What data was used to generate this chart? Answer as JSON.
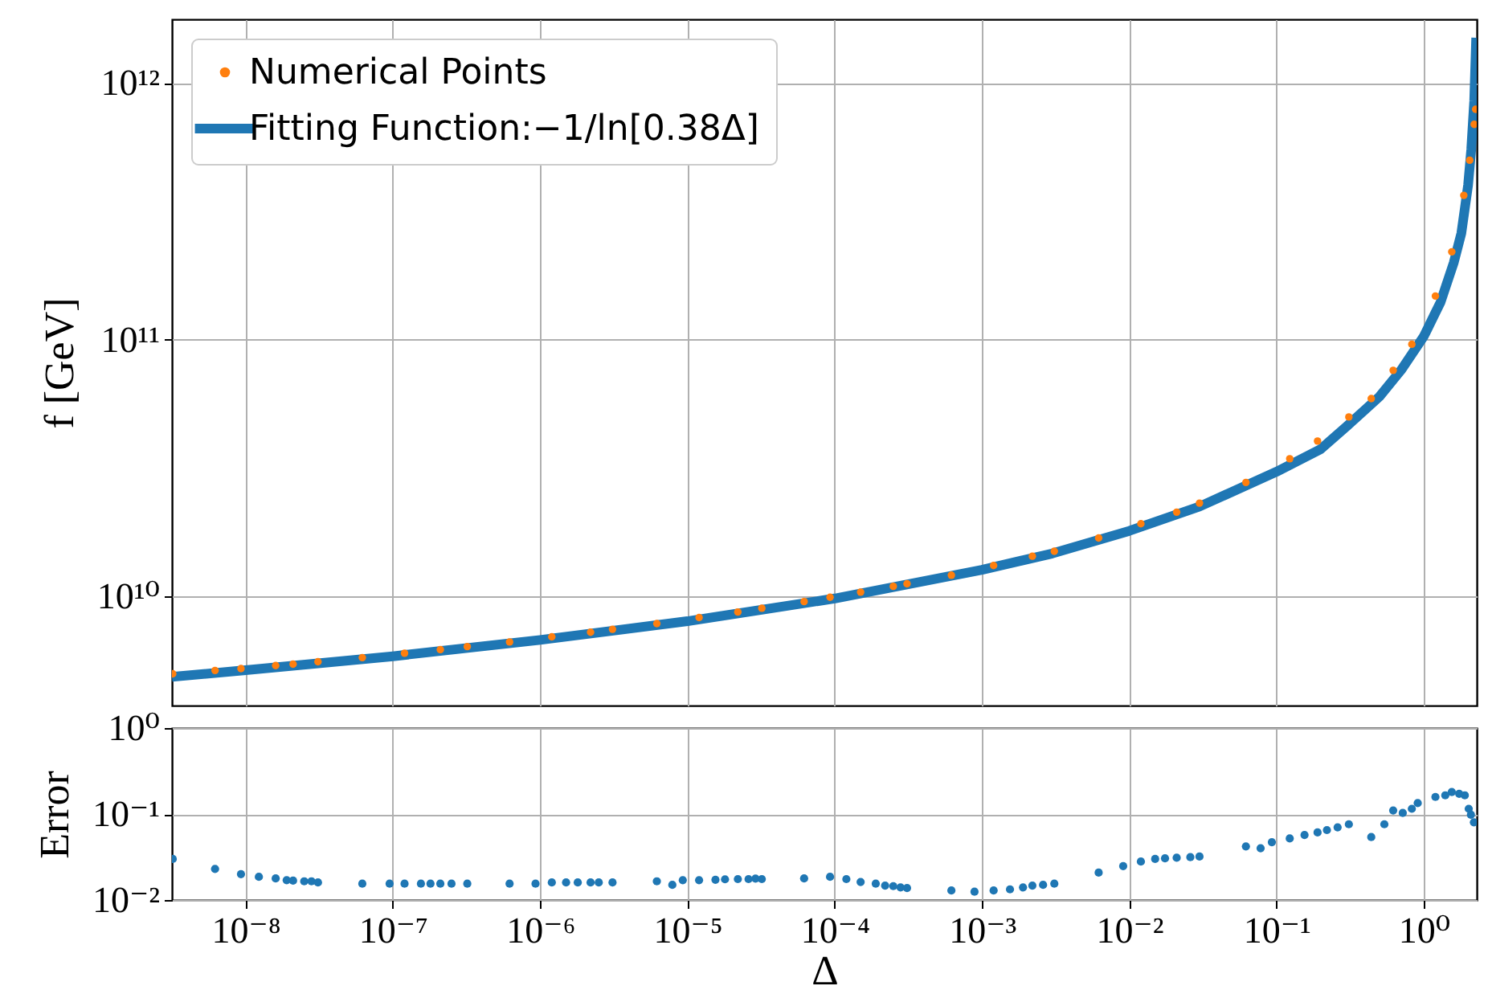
{
  "chart_data": [
    {
      "type": "scatter",
      "ylabel": "f [GeV]",
      "log": "xy",
      "grid": true,
      "legend": "top left",
      "tick_labels": "y",
      "xlim": [
        3.16e-09,
        2.29
      ],
      "ylim": [
        3760000000.0,
        1770000000000.0
      ],
      "xticks": [
        {
          "value": 1e-08,
          "label": null
        },
        {
          "value": 1e-07,
          "label": null
        },
        {
          "value": 1e-06,
          "label": null
        },
        {
          "value": 1e-05,
          "label": null
        },
        {
          "value": 0.0001,
          "label": null
        },
        {
          "value": 0.001,
          "label": null
        },
        {
          "value": 0.01,
          "label": null
        },
        {
          "value": 0.1,
          "label": null
        },
        {
          "value": 1,
          "label": null
        }
      ],
      "yticks": [
        {
          "value": 10000000000.0,
          "label": "10¹⁰"
        },
        {
          "value": 100000000000.0,
          "label": "10¹¹"
        },
        {
          "value": 1000000000000.0,
          "label": "10¹²"
        }
      ],
      "series": [
        {
          "name": "Numerical Points",
          "marker": "circle",
          "color": "#ff7f0e",
          "x": [
            3.2e-09,
            6.2e-09,
            9.3e-09,
            1.6e-08,
            2.1e-08,
            3.1e-08,
            6.2e-08,
            1.2e-07,
            2.1e-07,
            3.2e-07,
            6.2e-07,
            1.2e-06,
            2.2e-06,
            3.1e-06,
            6.2e-06,
            1.2e-05,
            2.2e-05,
            3.2e-05,
            6.2e-05,
            9.3e-05,
            0.00015,
            0.00025,
            0.00031,
            0.00062,
            0.0012,
            0.0022,
            0.0031,
            0.0062,
            0.012,
            0.021,
            0.03,
            0.062,
            0.123,
            0.19,
            0.31,
            0.44,
            0.62,
            0.83,
            1.2,
            1.55,
            1.87,
            2.05,
            2.2,
            2.25
          ],
          "values": [
            5000000000.0,
            5150000000.0,
            5240000000.0,
            5380000000.0,
            5450000000.0,
            5570000000.0,
            5780000000.0,
            6010000000.0,
            6210000000.0,
            6380000000.0,
            6650000000.0,
            6960000000.0,
            7260000000.0,
            7450000000.0,
            7840000000.0,
            8280000000.0,
            8700000000.0,
            9000000000.0,
            9550000000.0,
            9930000000.0,
            10400000000.0,
            10950000000.0,
            11200000000.0,
            12100000000.0,
            13200000000.0,
            14350000000.0,
            15000000000.0,
            16900000000.0,
            19200000000.0,
            21300000000.0,
            23100000000.0,
            27800000000.0,
            34400000000.0,
            40300000000.0,
            50000000000.0,
            59000000000.0,
            76000000000.0,
            96000000000.0,
            148000000000.0,
            220000000000.0,
            365000000000.0,
            500000000000.0,
            690000000000.0,
            790000000000.0
          ]
        },
        {
          "name": "Fitting Function:−1/ln[0.38Δ]",
          "type": "line",
          "color": "#1f77b4",
          "x": [
            3.16e-09,
            1e-08,
            1e-07,
            1e-06,
            1e-05,
            0.0001,
            0.001,
            0.003,
            0.01,
            0.03,
            0.1,
            0.2,
            0.3,
            0.5,
            0.7,
            1,
            1.3,
            1.6,
            1.8,
            2.0,
            2.1,
            2.2,
            2.27
          ],
          "values": [
            4860000000.0,
            5160000000.0,
            5850000000.0,
            6770000000.0,
            8010000000.0,
            9820000000.0,
            12700000000.0,
            14700000000.0,
            18000000000.0,
            22400000000.0,
            30600000000.0,
            37500000000.0,
            46000000000.0,
            60000000000.0,
            76000000000.0,
            103000000000.0,
            140000000000.0,
            200000000000.0,
            260000000000.0,
            400000000000.0,
            550000000000.0,
            850000000000.0,
            1500000000000.0
          ]
        }
      ]
    },
    {
      "type": "scatter",
      "xlabel": "Δ",
      "ylabel": "Error",
      "log": "xy",
      "grid": true,
      "marker": "circle",
      "xlim": [
        3.16e-09,
        2.29
      ],
      "ylim": [
        0.01,
        1
      ],
      "xticks": [
        {
          "value": 1e-08,
          "label": "10⁻⁸"
        },
        {
          "value": 1e-07,
          "label": "10⁻⁷"
        },
        {
          "value": 1e-06,
          "label": "10⁻⁶"
        },
        {
          "value": 1e-05,
          "label": "10⁻⁵"
        },
        {
          "value": 0.0001,
          "label": "10⁻⁴"
        },
        {
          "value": 0.001,
          "label": "10⁻³"
        },
        {
          "value": 0.01,
          "label": "10⁻²"
        },
        {
          "value": 0.1,
          "label": "10⁻¹"
        },
        {
          "value": 1,
          "label": "10⁰"
        }
      ],
      "yticks": [
        {
          "value": 0.01,
          "label": "10⁻²"
        },
        {
          "value": 0.1,
          "label": "10⁻¹"
        },
        {
          "value": 1,
          "label": "10⁰"
        }
      ],
      "series": [
        {
          "color": "#1f77b4",
          "x": [
            3.2e-09,
            6.2e-09,
            9.3e-09,
            1.23e-08,
            1.6e-08,
            1.9e-08,
            2.1e-08,
            2.5e-08,
            2.8e-08,
            3.1e-08,
            6.2e-08,
            9.5e-08,
            1.2e-07,
            1.55e-07,
            1.8e-07,
            2.1e-07,
            2.5e-07,
            3.2e-07,
            6.2e-07,
            9.3e-07,
            1.2e-06,
            1.5e-06,
            1.8e-06,
            2.2e-06,
            2.5e-06,
            3.1e-06,
            6.2e-06,
            7.9e-06,
            9.3e-06,
            1.2e-05,
            1.55e-05,
            1.8e-05,
            2.2e-05,
            2.6e-05,
            2.9e-05,
            3.2e-05,
            6.2e-05,
            9.3e-05,
            0.00012,
            0.00015,
            0.00019,
            0.00022,
            0.00025,
            0.00028,
            0.00031,
            0.00062,
            0.00089,
            0.0012,
            0.00155,
            0.0019,
            0.0022,
            0.0026,
            0.0031,
            0.0062,
            0.0091,
            0.012,
            0.015,
            0.0175,
            0.021,
            0.026,
            0.03,
            0.062,
            0.078,
            0.093,
            0.123,
            0.155,
            0.19,
            0.22,
            0.26,
            0.31,
            0.44,
            0.54,
            0.62,
            0.72,
            0.83,
            0.91,
            1.2,
            1.4,
            1.55,
            1.74,
            1.9,
            2.02,
            2.09,
            2.19
          ],
          "values": [
            0.03,
            0.023,
            0.02,
            0.0186,
            0.0178,
            0.017,
            0.0168,
            0.0165,
            0.0165,
            0.016,
            0.0155,
            0.0155,
            0.0155,
            0.0155,
            0.0155,
            0.0155,
            0.0155,
            0.0155,
            0.0155,
            0.0155,
            0.016,
            0.016,
            0.016,
            0.016,
            0.016,
            0.016,
            0.0165,
            0.015,
            0.017,
            0.017,
            0.0172,
            0.0174,
            0.0175,
            0.0175,
            0.0177,
            0.0175,
            0.0178,
            0.0186,
            0.0175,
            0.0162,
            0.0155,
            0.0147,
            0.0145,
            0.014,
            0.0138,
            0.0129,
            0.0125,
            0.0129,
            0.0133,
            0.014,
            0.0147,
            0.015,
            0.0155,
            0.0208,
            0.0248,
            0.028,
            0.03,
            0.0305,
            0.031,
            0.0315,
            0.032,
            0.042,
            0.04,
            0.047,
            0.052,
            0.057,
            0.061,
            0.065,
            0.07,
            0.076,
            0.054,
            0.076,
            0.11,
            0.103,
            0.115,
            0.134,
            0.158,
            0.165,
            0.18,
            0.172,
            0.165,
            0.115,
            0.098,
            0.08
          ]
        }
      ]
    }
  ]
}
